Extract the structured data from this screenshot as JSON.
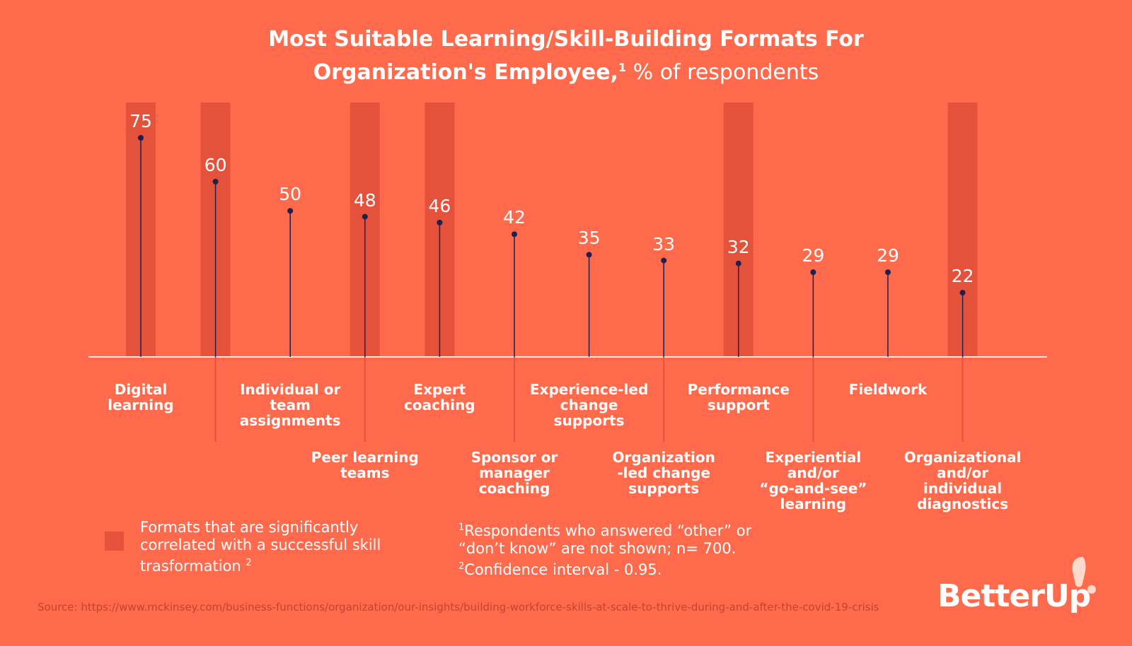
{
  "chart_data": {
    "type": "lollipop",
    "title": "Most Suitable Learning/Skill-Building Formats For\nOrganization's Employee,",
    "title_note": "1",
    "subtitle": "% of respondents",
    "categories": [
      "Digital\nlearning",
      null,
      "Individual or\nteam\nassignments",
      "Peer learning\nteams",
      "Expert\ncoaching",
      "Sponsor or\nmanager\ncoaching",
      "Experience-led\nchange\nsupports",
      "Organization\n-led change\nsupports",
      "Performance\nsupport",
      "Experiential\nand/or\n“go-and-see”\nlearning",
      "Fieldwork",
      "Organizational\nand/or\nindividual\ndiagnostics"
    ],
    "values": [
      75,
      60,
      50,
      48,
      46,
      42,
      35,
      33,
      32,
      29,
      29,
      22
    ],
    "highlighted": [
      true,
      true,
      false,
      true,
      true,
      false,
      false,
      false,
      true,
      false,
      false,
      true
    ],
    "color": "#1c2150",
    "highlight_color": "#e5523b",
    "ylim": [
      0,
      75
    ]
  },
  "legend": {
    "label": "Formats that are significantly\ncorrelated with a successful skill\ntrasformation",
    "note": "2"
  },
  "footnotes": [
    {
      "mark": "1",
      "text": "Respondents who answered “other” or\n“don’t know” are not shown; n= 700."
    },
    {
      "mark": "2",
      "text": "Confidence interval - 0.95."
    }
  ],
  "source": "Source: https://www.mckinsey.com/business-functions/organization/our-insights/building-workforce-skills-at-scale-to-thrive-during-and-after-the-covid-19-crisis",
  "brand": "BetterUp"
}
